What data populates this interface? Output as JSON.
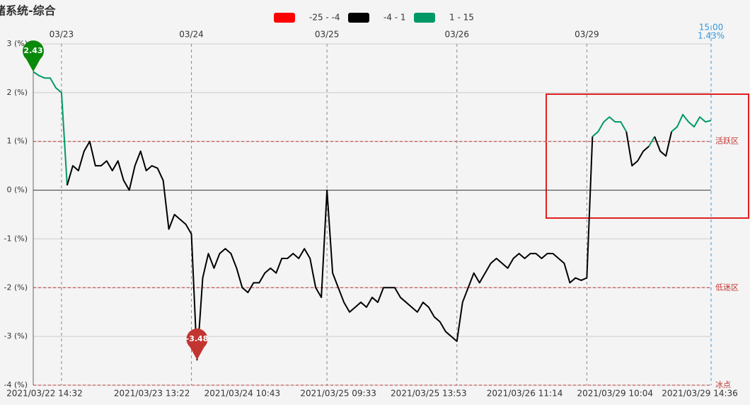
{
  "chart_data": {
    "type": "line",
    "title": "绪系统-综合",
    "pieces": [
      {
        "label": "-25 - -4",
        "min": -25,
        "max": -4,
        "color": "#ff0000"
      },
      {
        "label": "-4 - 1",
        "min": -4,
        "max": 1,
        "color": "#000000"
      },
      {
        "label": "1 - 15",
        "min": 1,
        "max": 15,
        "color": "#009966"
      }
    ],
    "ylim": [
      -4,
      3
    ],
    "yticks": [
      {
        "value": -4,
        "label": "-4 (%)"
      },
      {
        "value": -3,
        "label": "-3 (%)"
      },
      {
        "value": -2,
        "label": "-2 (%)"
      },
      {
        "value": -1,
        "label": "-1 (%)"
      },
      {
        "value": 0,
        "label": "0 (%)"
      },
      {
        "value": 1,
        "label": "1 (%)"
      },
      {
        "value": 2,
        "label": "2 (%)"
      },
      {
        "value": 3,
        "label": "3 (%)"
      }
    ],
    "grid": true,
    "mark_lines": [
      {
        "value": 1,
        "label": "活跃区"
      },
      {
        "value": -2,
        "label": "低迷区"
      },
      {
        "value": -4,
        "label": "冰点"
      }
    ],
    "mark_line_color": "#c23531",
    "max_color": "#0a8a0a",
    "min_color": "#c23531",
    "end_time": "15:00",
    "end_value_label": "1.43%",
    "end_color": "#3398db",
    "categories": [
      null,
      null,
      "2021/03/22 14:32",
      null,
      null,
      null,
      null,
      null,
      null,
      null,
      null,
      null,
      null,
      null,
      null,
      null,
      null,
      null,
      null,
      null,
      null,
      "2021/03/23 13:22",
      null,
      null,
      null,
      null,
      null,
      null,
      null,
      null,
      null,
      null,
      null,
      null,
      null,
      null,
      null,
      "2021/03/24 10:43",
      null,
      null,
      null,
      null,
      null,
      null,
      null,
      null,
      null,
      null,
      null,
      null,
      null,
      null,
      null,
      null,
      "2021/03/25 09:33",
      null,
      null,
      null,
      null,
      null,
      null,
      null,
      null,
      null,
      null,
      null,
      null,
      null,
      null,
      null,
      "2021/03/25 13:53",
      null,
      null,
      null,
      null,
      null,
      null,
      null,
      null,
      null,
      null,
      null,
      null,
      null,
      null,
      null,
      null,
      "2021/03/26 11:14",
      null,
      null,
      null,
      null,
      null,
      null,
      null,
      null,
      null,
      null,
      null,
      null,
      null,
      null,
      null,
      "2021/03/29 10:04",
      null,
      null,
      null,
      null,
      null,
      null,
      null,
      null,
      null,
      null,
      null,
      null,
      null,
      null,
      "2021/03/29 14:36",
      null,
      null
    ],
    "day_labels": [
      null,
      null,
      null,
      null,
      null,
      "03/23",
      null,
      null,
      null,
      null,
      null,
      null,
      null,
      null,
      null,
      null,
      null,
      null,
      null,
      null,
      null,
      null,
      null,
      null,
      null,
      null,
      null,
      null,
      "03/24",
      null,
      null,
      null,
      null,
      null,
      null,
      null,
      null,
      null,
      null,
      null,
      null,
      null,
      null,
      null,
      null,
      null,
      null,
      null,
      null,
      null,
      null,
      null,
      "03/25",
      null,
      null,
      null,
      null,
      null,
      null,
      null,
      null,
      null,
      null,
      null,
      null,
      null,
      null,
      null,
      null,
      null,
      null,
      null,
      null,
      null,
      null,
      "03/26",
      null,
      null,
      null,
      null,
      null,
      null,
      null,
      null,
      null,
      null,
      null,
      null,
      null,
      null,
      null,
      null,
      null,
      null,
      null,
      null,
      null,
      null,
      "03/29",
      null,
      null,
      null,
      null,
      null,
      null,
      null,
      null,
      null,
      null,
      null,
      null,
      null,
      null,
      null,
      null,
      null,
      null,
      null,
      null,
      null,
      null
    ],
    "values": [
      2.43,
      2.35,
      2.3,
      2.3,
      2.1,
      2.0,
      0.1,
      0.5,
      0.4,
      0.8,
      1.0,
      0.5,
      0.5,
      0.6,
      0.4,
      0.6,
      0.2,
      0.0,
      0.5,
      0.8,
      0.4,
      0.5,
      0.45,
      0.2,
      -0.8,
      -0.5,
      -0.6,
      -0.7,
      -0.9,
      -3.48,
      -1.8,
      -1.3,
      -1.6,
      -1.3,
      -1.2,
      -1.3,
      -1.6,
      -2.0,
      -2.1,
      -1.9,
      -1.9,
      -1.7,
      -1.6,
      -1.7,
      -1.4,
      -1.4,
      -1.3,
      -1.4,
      -1.2,
      -1.4,
      -2.0,
      -2.2,
      0.0,
      -1.7,
      -2.0,
      -2.3,
      -2.5,
      -2.4,
      -2.3,
      -2.4,
      -2.2,
      -2.3,
      -2.0,
      -2.0,
      -2.0,
      -2.2,
      -2.3,
      -2.4,
      -2.5,
      -2.3,
      -2.4,
      -2.6,
      -2.7,
      -2.9,
      -3.0,
      -3.1,
      -2.3,
      -2.0,
      -1.7,
      -1.9,
      -1.7,
      -1.5,
      -1.4,
      -1.5,
      -1.6,
      -1.4,
      -1.3,
      -1.4,
      -1.3,
      -1.3,
      -1.4,
      -1.3,
      -1.3,
      -1.4,
      -1.5,
      -1.9,
      -1.8,
      -1.85,
      -1.8,
      1.1,
      1.2,
      1.4,
      1.5,
      1.4,
      1.4,
      1.2,
      0.5,
      0.6,
      0.8,
      0.9,
      1.1,
      0.8,
      0.7,
      1.2,
      1.3,
      1.55,
      1.4,
      1.3,
      1.5,
      1.4,
      1.43
    ]
  }
}
